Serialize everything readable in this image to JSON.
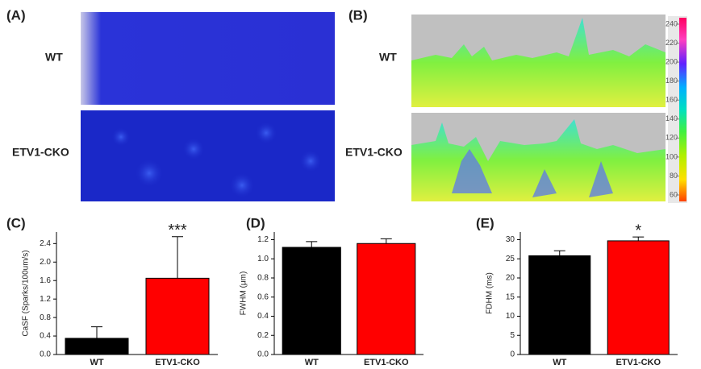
{
  "panels": {
    "A": {
      "label": "(A)",
      "rows": [
        "WT",
        "ETV1-CKO"
      ]
    },
    "B": {
      "label": "(B)",
      "rows": [
        "WT",
        "ETV1-CKO"
      ],
      "colorbar_ticks": [
        60,
        80,
        100,
        120,
        140,
        160,
        180,
        200,
        220,
        240
      ]
    }
  },
  "chart_data": [
    {
      "type": "bar",
      "label": "(C)",
      "y_label": "CaSF (Sparks/100um/s)",
      "categories": [
        "WT",
        "ETV1-CKO"
      ],
      "values": [
        0.35,
        1.65
      ],
      "errors": [
        0.25,
        0.9
      ],
      "colors": [
        "#000000",
        "#ff0000"
      ],
      "annotations": [
        null,
        "***"
      ],
      "ylim": [
        0,
        2.65
      ],
      "yticks": [
        {
          "value": 0,
          "label": "0.0"
        },
        0.4,
        0.8,
        1.2,
        1.6,
        {
          "value": 2,
          "label": "2.0"
        },
        2.4
      ]
    },
    {
      "type": "bar",
      "label": "(D)",
      "y_label": "FWHM (μm)",
      "categories": [
        "WT",
        "ETV1-CKO"
      ],
      "values": [
        1.12,
        1.16
      ],
      "errors": [
        0.06,
        0.05
      ],
      "colors": [
        "#000000",
        "#ff0000"
      ],
      "annotations": [
        null,
        null
      ],
      "ylim": [
        0,
        1.28
      ],
      "yticks": [
        {
          "value": 0,
          "label": "0.0"
        },
        0.2,
        0.4,
        0.6,
        0.8,
        {
          "value": 1,
          "label": "1.0"
        },
        1.2
      ]
    },
    {
      "type": "bar",
      "label": "(E)",
      "y_label": "FDHM (ms)",
      "categories": [
        "WT",
        "ETV1-CKO"
      ],
      "values": [
        25.8,
        29.7
      ],
      "errors": [
        1.3,
        1.0
      ],
      "colors": [
        "#000000",
        "#ff0000"
      ],
      "annotations": [
        null,
        "*"
      ],
      "ylim": [
        0,
        32
      ],
      "yticks": [
        0,
        5,
        10,
        15,
        20,
        25,
        30
      ]
    }
  ]
}
